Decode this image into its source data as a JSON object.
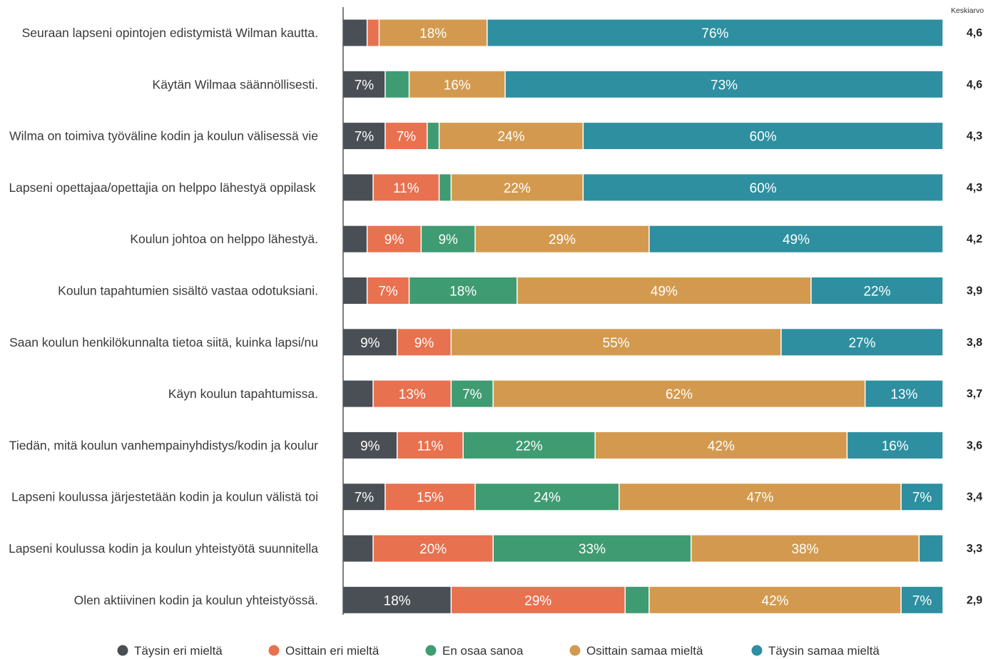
{
  "chart_data": {
    "type": "bar",
    "orientation": "horizontal",
    "stacked": true,
    "percent_scale": true,
    "mean_header": "Keskiarvo",
    "categories": [
      "Seuraan lapseni opintojen edistymistä Wilman kautta.",
      "Käytän Wilmaa säännöllisesti.",
      "Wilma on toimiva työväline kodin ja koulun välisessä vie",
      "Lapseni opettajaa/opettajia on helppo lähestyä oppilask ",
      "Koulun johtoa on helppo lähestyä.",
      "Koulun tapahtumien sisältö vastaa odotuksiani.",
      "Saan koulun henkilökunnalta tietoa siitä, kuinka lapsi/nu",
      "Käyn koulun tapahtumissa.",
      "Tiedän, mitä koulun vanhempainyhdistys/kodin ja koulur",
      "Lapseni koulussa järjestetään kodin ja koulun välistä toi",
      "Lapseni koulussa kodin ja koulun yhteistyötä suunnitella",
      "Olen aktiivinen kodin ja koulun yhteistyössä."
    ],
    "means": [
      "4,6",
      "4,6",
      "4,3",
      "4,3",
      "4,2",
      "3,9",
      "3,8",
      "3,7",
      "3,6",
      "3,4",
      "3,3",
      "2,9"
    ],
    "series": [
      {
        "name": "Täysin eri mieltä",
        "color": "#4a4f55",
        "values": [
          4,
          7,
          7,
          5,
          4,
          4,
          9,
          5,
          9,
          7,
          5,
          18
        ],
        "labels": [
          "",
          "7%",
          "7%",
          "",
          "",
          "",
          "9%",
          "",
          "9%",
          "7%",
          "",
          "18%"
        ]
      },
      {
        "name": "Osittain eri mieltä",
        "color": "#e8714f",
        "values": [
          2,
          0,
          7,
          11,
          9,
          7,
          9,
          13,
          11,
          15,
          20,
          29
        ],
        "labels": [
          "",
          "",
          "7%",
          "11%",
          "9%",
          "7%",
          "9%",
          "13%",
          "11%",
          "15%",
          "20%",
          "29%"
        ]
      },
      {
        "name": "En osaa sanoa",
        "color": "#3f9b72",
        "values": [
          0,
          4,
          2,
          2,
          9,
          18,
          0,
          7,
          22,
          24,
          33,
          4
        ],
        "labels": [
          "",
          "",
          "",
          "",
          "9%",
          "18%",
          "",
          "7%",
          "22%",
          "24%",
          "33%",
          ""
        ]
      },
      {
        "name": "Osittain samaa mieltä",
        "color": "#d39a4f",
        "values": [
          18,
          16,
          24,
          22,
          29,
          49,
          55,
          62,
          42,
          47,
          38,
          42
        ],
        "labels": [
          "18%",
          "16%",
          "24%",
          "22%",
          "29%",
          "49%",
          "55%",
          "62%",
          "42%",
          "47%",
          "38%",
          "42%"
        ]
      },
      {
        "name": "Täysin samaa mieltä",
        "color": "#2d8fa0",
        "values": [
          76,
          73,
          60,
          60,
          49,
          22,
          27,
          13,
          16,
          7,
          4,
          7
        ],
        "labels": [
          "76%",
          "73%",
          "60%",
          "60%",
          "49%",
          "22%",
          "27%",
          "13%",
          "16%",
          "7%",
          "",
          "7%"
        ]
      }
    ]
  }
}
